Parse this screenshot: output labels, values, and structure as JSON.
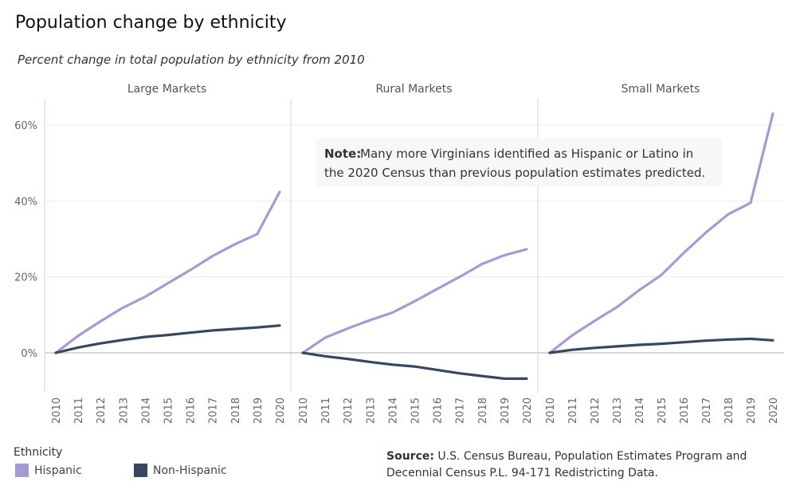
{
  "header": {
    "title": "Population change by ethnicity",
    "subtitle": "Percent change in total population by ethnicity from 2010"
  },
  "annotation": {
    "label": "Note:",
    "line1": "Many more Virginians identified as Hispanic or Latino in",
    "line2": "the 2020 Census than previous population estimates predicted."
  },
  "legend": {
    "title": "Ethnicity",
    "items": [
      {
        "label": "Hispanic",
        "color": "#a59bd4"
      },
      {
        "label": "Non-Hispanic",
        "color": "#35485f"
      }
    ]
  },
  "source": {
    "label": "Source:",
    "line1": "U.S. Census Bureau, Population Estimates Program and",
    "line2": "Decennial Census P.L. 94-171 Redistricting Data."
  },
  "chart_data": {
    "type": "line",
    "x": [
      "2010",
      "2011",
      "2012",
      "2013",
      "2014",
      "2015",
      "2016",
      "2017",
      "2018",
      "2019",
      "2020"
    ],
    "ylim": [
      -10,
      66
    ],
    "yticks": [
      0,
      20,
      40,
      60
    ],
    "ytick_labels": [
      "0%",
      "20%",
      "40%",
      "60%"
    ],
    "grid": true,
    "legend_position": "bottom-left",
    "colors": {
      "Hispanic": "#a59bd4",
      "Non-Hispanic": "#35485f"
    },
    "panels": [
      {
        "title": "Large Markets",
        "series": [
          {
            "name": "Hispanic",
            "values": [
              0,
              4.5,
              8.3,
              11.9,
              14.8,
              18.3,
              21.8,
              25.5,
              28.6,
              31.3,
              42.4
            ]
          },
          {
            "name": "Non-Hispanic",
            "values": [
              0,
              1.4,
              2.5,
              3.4,
              4.2,
              4.7,
              5.3,
              5.9,
              6.3,
              6.7,
              7.2
            ]
          }
        ]
      },
      {
        "title": "Rural Markets",
        "series": [
          {
            "name": "Hispanic",
            "values": [
              0,
              4.0,
              6.4,
              8.6,
              10.6,
              13.6,
              16.8,
              20.0,
              23.4,
              25.7,
              27.3
            ]
          },
          {
            "name": "Non-Hispanic",
            "values": [
              0,
              -0.9,
              -1.6,
              -2.4,
              -3.1,
              -3.6,
              -4.5,
              -5.4,
              -6.1,
              -6.8,
              -6.8
            ]
          }
        ]
      },
      {
        "title": "Small Markets",
        "series": [
          {
            "name": "Hispanic",
            "values": [
              0,
              4.6,
              8.4,
              12.0,
              16.5,
              20.5,
              26.3,
              31.7,
              36.5,
              39.5,
              63.0
            ]
          },
          {
            "name": "Non-Hispanic",
            "values": [
              0,
              0.8,
              1.3,
              1.7,
              2.1,
              2.4,
              2.8,
              3.2,
              3.5,
              3.7,
              3.3
            ]
          }
        ]
      }
    ]
  }
}
